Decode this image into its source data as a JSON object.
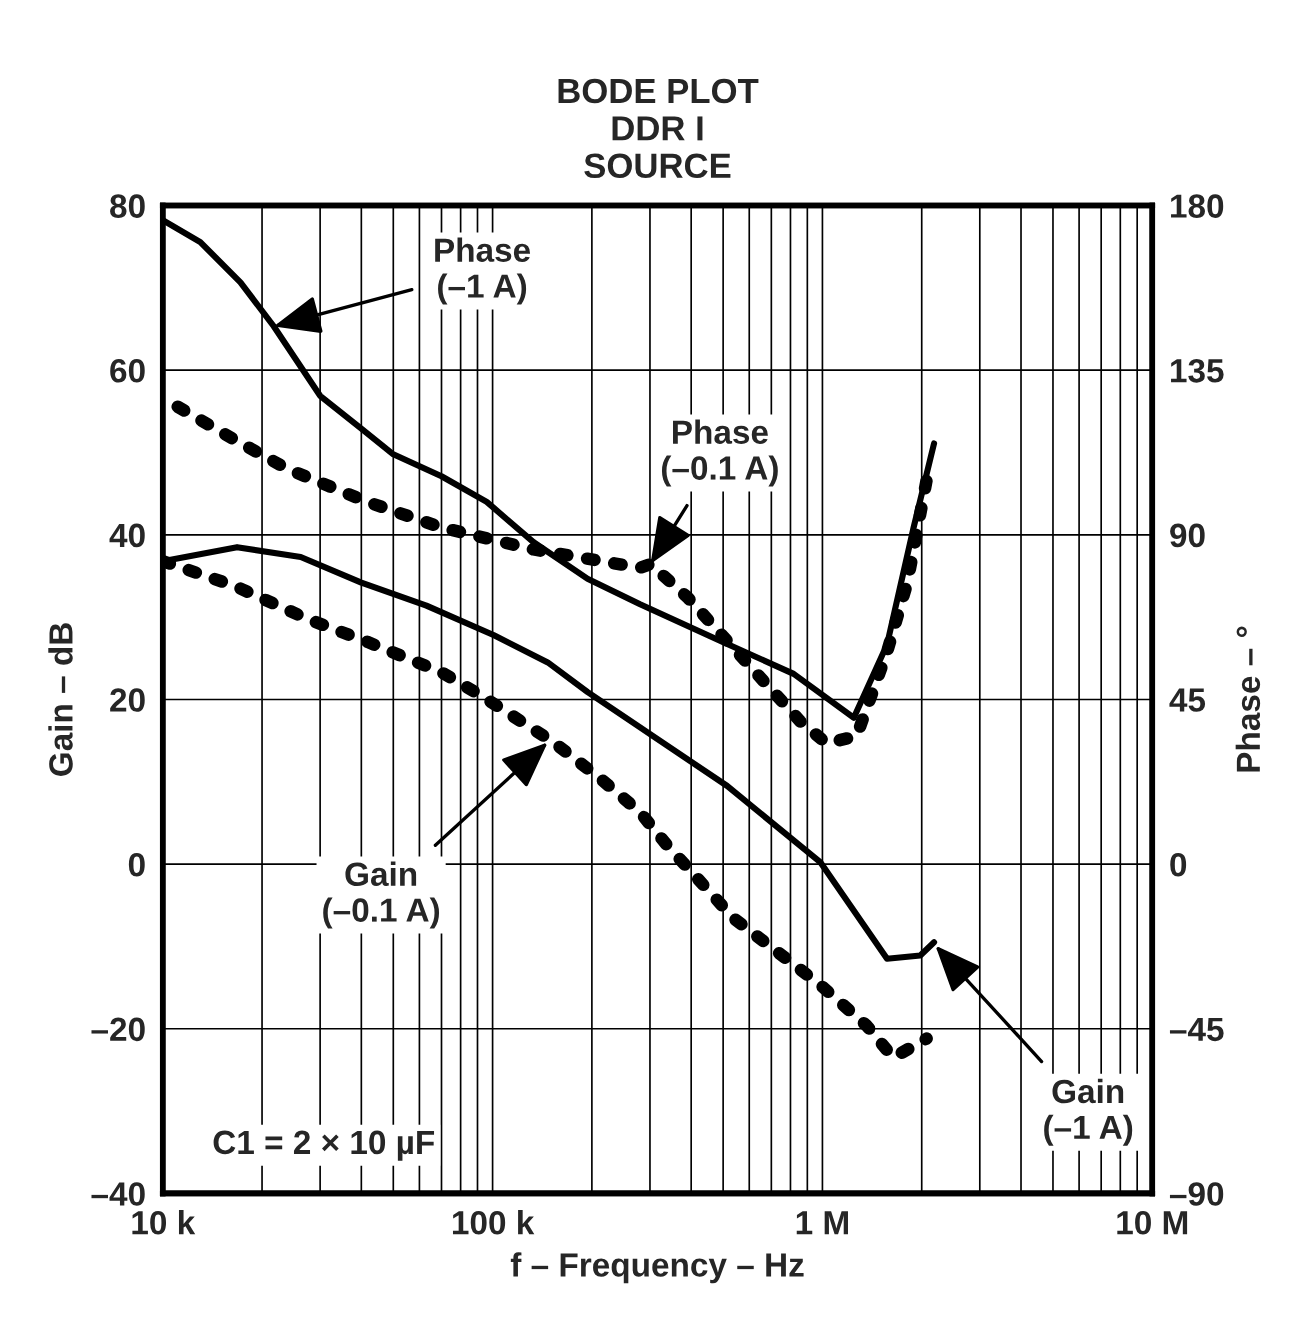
{
  "chart_data": {
    "type": "line",
    "title": "BODE PLOT\nDDR I\nSOURCE",
    "xlabel": "f – Frequency – Hz",
    "ylabel": "Gain – dB",
    "y2label": "Phase – °",
    "log": "x",
    "grid": true,
    "legend": false,
    "marker": "none",
    "xlim": [
      10000,
      10000000
    ],
    "xticks": [
      {
        "value": 10000,
        "label": "10 k"
      },
      {
        "value": 100000,
        "label": "100 k"
      },
      {
        "value": 1000000,
        "label": "1 M"
      },
      {
        "value": 10000000,
        "label": "10 M"
      }
    ],
    "ylim": [
      -40,
      80
    ],
    "yticks": [
      {
        "value": -40,
        "label": "–40"
      },
      {
        "value": -20,
        "label": "–20"
      },
      0,
      20,
      40,
      60,
      80
    ],
    "y2lim": [
      -90,
      180
    ],
    "y2ticks": [
      {
        "value": -90,
        "label": "–90"
      },
      {
        "value": -45,
        "label": "–45"
      },
      0,
      45,
      90,
      135,
      180
    ],
    "series": [
      {
        "axis": "y2",
        "color": "#000000",
        "line_style": "solid",
        "x": [
          10000,
          13000,
          17200,
          21700,
          30000,
          40000,
          50000,
          70000,
          96000,
          133000,
          194000,
          280000,
          491000,
          818000,
          1245000,
          1570000,
          1890000,
          2180000
        ],
        "values": [
          176,
          170,
          159,
          147,
          128,
          119,
          112,
          106,
          99,
          88,
          78,
          71,
          61,
          52,
          40,
          60,
          92,
          115
        ]
      },
      {
        "axis": "y2",
        "color": "#000000",
        "line_style": "dotted",
        "x": [
          11100,
          16500,
          23900,
          41700,
          70000,
          133000,
          280000,
          301000,
          389000,
          539000,
          679000,
          857000,
          1030000,
          1270000,
          1570000,
          1810000,
          2120000
        ],
        "values": [
          125,
          116,
          108,
          99,
          92,
          86,
          81,
          82,
          73,
          59,
          49,
          39,
          33,
          35,
          58,
          77,
          110
        ]
      },
      {
        "color": "#000000",
        "line_style": "solid",
        "x": [
          10000,
          16800,
          26200,
          40000,
          63000,
          101000,
          147000,
          194000,
          514000,
          987000,
          1570000,
          1980000,
          2180000
        ],
        "values": [
          36.8,
          38.5,
          37.3,
          34.2,
          31.4,
          27.8,
          24.5,
          20.9,
          9.5,
          0.2,
          -11.5,
          -11.1,
          -9.5
        ]
      },
      {
        "color": "#000000",
        "line_style": "dotted",
        "x": [
          10000,
          16500,
          27400,
          41700,
          70000,
          92000,
          153000,
          212000,
          280000,
          338000,
          539000,
          987000,
          1360000,
          1640000,
          2070000
        ],
        "values": [
          36.8,
          33.8,
          29.8,
          27.0,
          23.3,
          20.5,
          14.8,
          10.4,
          6.3,
          2.3,
          -6.6,
          -14.7,
          -19.6,
          -23.5,
          -21.2
        ]
      }
    ],
    "annotations": [
      {
        "text": "Phase\n(–1 A)",
        "x": 21700,
        "y": 65.3
      },
      "Phase\n(–0.1 A)",
      {
        "text": "Gain\n(–0.1 A)",
        "x": 147000,
        "y": 14.8
      },
      {
        "text": "Gain\n(–1 A)",
        "x": 2200000,
        "y": -9.9
      },
      "C1 = 2 × 10 µF"
    ]
  }
}
